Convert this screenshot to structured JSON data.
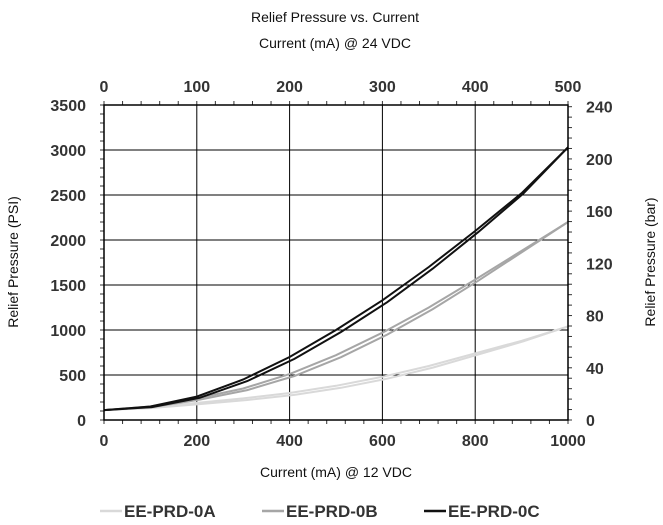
{
  "chart_data": {
    "type": "line",
    "title": "Relief Pressure vs. Current",
    "x_top_label": "Current (mA) @ 24 VDC",
    "x_bottom_label": "Current (mA) @ 12 VDC",
    "y_left_label": "Relief Pressure (PSI)",
    "y_right_label": "Relief Pressure (bar)",
    "xlim": [
      0,
      1000
    ],
    "ylim": [
      0,
      3500
    ],
    "x_top_lim": [
      0,
      500
    ],
    "y_right_lim": [
      0,
      241.3
    ],
    "x_ticks": [
      "0",
      "200",
      "400",
      "600",
      "800",
      "1000"
    ],
    "x_top_ticks": [
      "0",
      "100",
      "200",
      "300",
      "400",
      "500"
    ],
    "y_ticks": [
      "0",
      "500",
      "1000",
      "1500",
      "2000",
      "2500",
      "3000",
      "3500"
    ],
    "y_right_ticks": [
      "0",
      "40",
      "80",
      "120",
      "160",
      "200",
      "240"
    ],
    "grid": true,
    "legend_position": "bottom",
    "series": [
      {
        "name": "EE-PRD-0A",
        "color": "#d9d9d9",
        "hysteresis": true,
        "x": [
          0,
          100,
          200,
          300,
          400,
          500,
          600,
          700,
          800,
          900,
          1000
        ],
        "y": [
          110,
          140,
          190,
          240,
          300,
          380,
          480,
          600,
          740,
          880,
          1040
        ]
      },
      {
        "name": "EE-PRD-0B",
        "color": "#a6a6a6",
        "hysteresis": true,
        "x": [
          0,
          100,
          200,
          300,
          400,
          500,
          600,
          700,
          800,
          900,
          1000
        ],
        "y": [
          110,
          150,
          240,
          350,
          510,
          720,
          970,
          1250,
          1560,
          1880,
          2200
        ]
      },
      {
        "name": "EE-PRD-0C",
        "color": "#111111",
        "hysteresis": true,
        "x": [
          0,
          100,
          200,
          300,
          400,
          500,
          600,
          700,
          800,
          900,
          1000
        ],
        "y": [
          110,
          150,
          260,
          450,
          700,
          1000,
          1330,
          1700,
          2100,
          2520,
          3030
        ]
      }
    ]
  }
}
